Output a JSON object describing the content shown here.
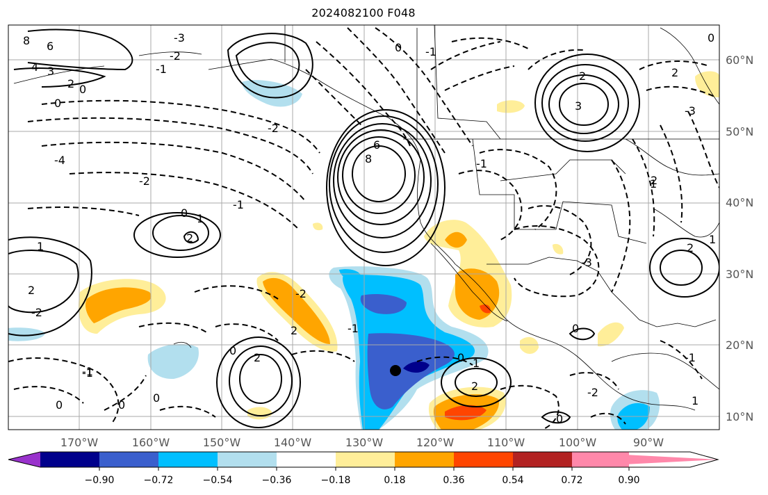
{
  "title": "2024082100 F048",
  "lat_labels": [
    "60°N",
    "50°N",
    "40°N",
    "30°N",
    "20°N",
    "10°N"
  ],
  "lon_labels": [
    "170°W",
    "160°W",
    "150°W",
    "140°W",
    "130°W",
    "120°W",
    "110°W",
    "100°W",
    "90°W"
  ],
  "colorbar": {
    "colors": [
      "#9932cc",
      "#00008b",
      "#3a5fcd",
      "#00bfff",
      "#b2dfee",
      "#ffffff",
      "#ffee99",
      "#ffa500",
      "#ff4500",
      "#b22222",
      "#ff88aa"
    ],
    "tick_labels": [
      "−0.90",
      "−0.72",
      "−0.54",
      "−0.36",
      "−0.18",
      "0.18",
      "0.36",
      "0.54",
      "0.72",
      "0.90"
    ]
  },
  "contour_labels": [
    "8",
    "6",
    "4",
    "3",
    "2",
    "0",
    "-3",
    "-2",
    "-1",
    "-4",
    "0",
    "-2",
    "-1",
    "0",
    "1",
    "2",
    "8",
    "6",
    "-1",
    "-3",
    "1",
    "2",
    "0",
    "-2",
    "2",
    "0",
    "-1",
    "0",
    "2",
    "3",
    "2",
    "-2",
    "-1",
    "0",
    "1",
    "-2",
    "2",
    "0",
    "-1",
    "0",
    "-1",
    "1",
    "2",
    "2",
    "0",
    "-3",
    "1",
    "2",
    "0",
    "-1",
    "-2",
    "0",
    "1"
  ]
}
